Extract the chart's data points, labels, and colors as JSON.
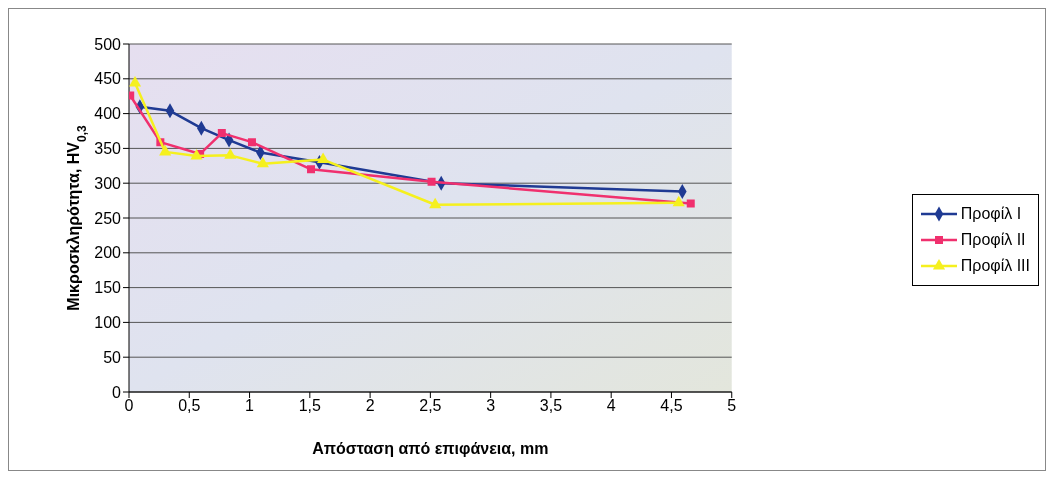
{
  "chart_data": {
    "type": "line",
    "xlabel": "Απόσταση από επιφάνεια, mm",
    "ylabel": "Μικροσκληρότητα, HV$_{0,3}$",
    "xlim": [
      0,
      5
    ],
    "xticks": [
      0,
      {
        "value": 0.5,
        "label": "0,5"
      },
      1,
      {
        "value": 1.5,
        "label": "1,5"
      },
      2,
      {
        "value": 2.5,
        "label": "2,5"
      },
      3,
      {
        "value": 3.5,
        "label": "3,5"
      },
      4,
      {
        "value": 4.5,
        "label": "4,5"
      },
      5
    ],
    "ylim": [
      0,
      500
    ],
    "yticks": [
      0,
      50,
      100,
      150,
      200,
      250,
      300,
      350,
      400,
      450,
      500
    ],
    "grid": "y",
    "legend": "right",
    "series": [
      {
        "name": "Προφίλ I",
        "color": "#1f3a93",
        "marker": "diamond",
        "x": [
          0.09,
          0.34,
          0.6,
          0.83,
          1.09,
          1.58,
          2.59,
          4.59
        ],
        "values": [
          410,
          404,
          379,
          362,
          344,
          330,
          300,
          288
        ]
      },
      {
        "name": "Προφίλ II",
        "color": "#f0306e",
        "marker": "square",
        "x": [
          0.01,
          0.26,
          0.59,
          0.77,
          1.02,
          1.51,
          2.51,
          4.66
        ],
        "values": [
          426,
          359,
          342,
          372,
          359,
          320,
          302,
          271
        ]
      },
      {
        "name": "Προφίλ III",
        "color": "#f5f01e",
        "marker": "triangle",
        "x": [
          0.05,
          0.3,
          0.56,
          0.84,
          1.11,
          1.61,
          2.54,
          4.56
        ],
        "values": [
          444,
          345,
          339,
          340,
          328,
          334,
          269,
          272
        ]
      }
    ]
  }
}
